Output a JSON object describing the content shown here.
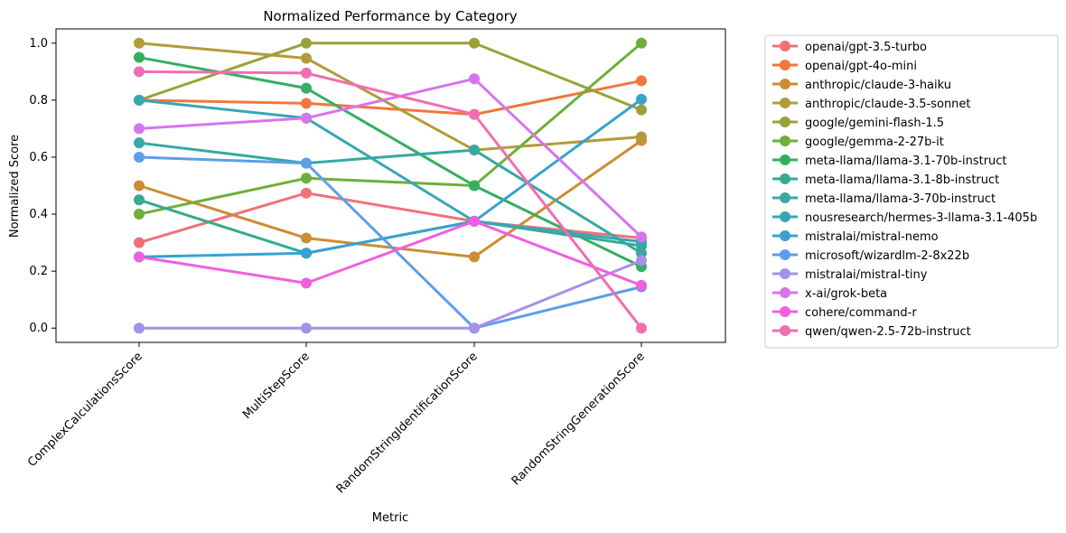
{
  "chart_data": {
    "type": "line",
    "title": "Normalized Performance by Category",
    "xlabel": "Metric",
    "ylabel": "Normalized Score",
    "categories": [
      "ComplexCalculationsScore",
      "MultiStepScore",
      "RandomStringIdentificationScore",
      "RandomStringGenerationScore"
    ],
    "ylim": [
      -0.05,
      1.05
    ],
    "yticks": [
      "0.0",
      "0.2",
      "0.4",
      "0.6",
      "0.8",
      "1.0"
    ],
    "grid": false,
    "legend_position": "outside-right",
    "series": [
      {
        "name": "openai/gpt-3.5-turbo",
        "color": "#f0717a",
        "values": [
          0.3,
          0.474,
          0.375,
          0.316
        ]
      },
      {
        "name": "openai/gpt-4o-mini",
        "color": "#f0773d",
        "values": [
          0.8,
          0.789,
          0.75,
          0.868
        ]
      },
      {
        "name": "anthropic/claude-3-haiku",
        "color": "#cc8d33",
        "values": [
          0.5,
          0.316,
          0.25,
          0.658
        ]
      },
      {
        "name": "anthropic/claude-3.5-sonnet",
        "color": "#b29b3a",
        "values": [
          1.0,
          0.947,
          0.625,
          0.671
        ]
      },
      {
        "name": "google/gemini-flash-1.5",
        "color": "#9aa13a",
        "values": [
          0.8,
          1.0,
          1.0,
          0.766
        ]
      },
      {
        "name": "google/gemma-2-27b-it",
        "color": "#6daf3a",
        "values": [
          0.4,
          0.526,
          0.5,
          1.0
        ]
      },
      {
        "name": "meta-llama/llama-3.1-70b-instruct",
        "color": "#34ae60",
        "values": [
          0.95,
          0.842,
          0.5,
          0.216
        ]
      },
      {
        "name": "meta-llama/llama-3.1-8b-instruct",
        "color": "#35ab8f",
        "values": [
          0.45,
          0.263,
          0.375,
          0.289
        ]
      },
      {
        "name": "meta-llama/llama-3-70b-instruct",
        "color": "#37a8a2",
        "values": [
          0.65,
          0.579,
          0.625,
          0.263
        ]
      },
      {
        "name": "nousresearch/hermes-3-llama-3.1-405b",
        "color": "#39a6b5",
        "values": [
          0.8,
          0.737,
          0.375,
          0.303
        ]
      },
      {
        "name": "mistralai/mistral-nemo",
        "color": "#39a1cf",
        "values": [
          0.25,
          0.263,
          0.375,
          0.803
        ]
      },
      {
        "name": "microsoft/wizardlm-2-8x22b",
        "color": "#5e9ee8",
        "values": [
          0.6,
          0.579,
          0.0,
          0.145
        ]
      },
      {
        "name": "mistralai/mistral-tiny",
        "color": "#a590ea",
        "values": [
          0.0,
          0.0,
          0.0,
          0.237
        ]
      },
      {
        "name": "x-ai/grok-beta",
        "color": "#d575ee",
        "values": [
          0.7,
          0.737,
          0.875,
          0.32
        ]
      },
      {
        "name": "cohere/command-r",
        "color": "#f05fe0",
        "values": [
          0.25,
          0.158,
          0.375,
          0.15
        ]
      },
      {
        "name": "qwen/qwen-2.5-72b-instruct",
        "color": "#f06eb0",
        "values": [
          0.9,
          0.895,
          0.75,
          0.0
        ]
      }
    ]
  }
}
